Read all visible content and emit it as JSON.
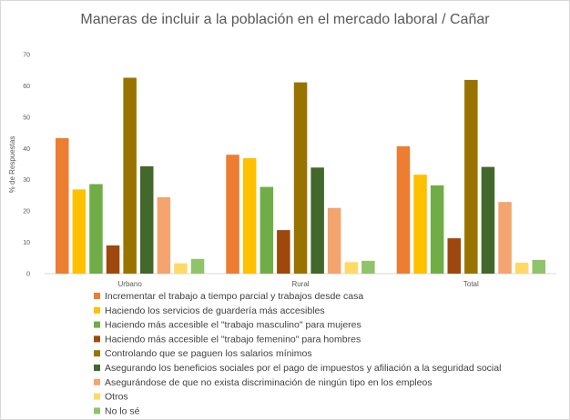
{
  "chart_data": {
    "type": "bar",
    "title": "Maneras de incluir a la población en el mercado laboral / Cañar",
    "ylabel": "% de Respuestas",
    "xlabel": "",
    "ylim": [
      0,
      70
    ],
    "yticks": [
      0,
      10,
      20,
      30,
      40,
      50,
      60,
      70
    ],
    "categories": [
      "Urbano",
      "Rural",
      "Total"
    ],
    "grid": false,
    "legend_position": "bottom",
    "series": [
      {
        "name": "Incrementar el trabajo a tiempo parcial y trabajos desde casa",
        "color": "#ED7D31",
        "values": [
          43.3,
          38.0,
          40.7
        ]
      },
      {
        "name": "Haciendo los servicios de guardería más accesibles",
        "color": "#FFC000",
        "values": [
          26.9,
          36.9,
          31.6
        ]
      },
      {
        "name": "Haciendo más accesible el \"trabajo masculino\" para mujeres",
        "color": "#70AD47",
        "values": [
          28.6,
          27.7,
          28.2
        ]
      },
      {
        "name": "Haciendo más accesible el \"trabajo femenino\" para hombres",
        "color": "#9E480E",
        "values": [
          9.0,
          13.9,
          11.3
        ]
      },
      {
        "name": "Controlando que se paguen los salarios mínimos",
        "color": "#997300",
        "values": [
          62.6,
          61.1,
          61.9
        ]
      },
      {
        "name": "Asegurando los beneficios sociales por el pago de impuestos y afiliación a la seguridad social",
        "color": "#43682B",
        "values": [
          34.3,
          33.9,
          34.1
        ]
      },
      {
        "name": "Asegurándose de que no exista discriminación de ningún tipo en los empleos",
        "color": "#F4A46E",
        "values": [
          24.4,
          21.0,
          22.9
        ]
      },
      {
        "name": "Otros",
        "color": "#FFD966",
        "values": [
          3.3,
          3.7,
          3.5
        ]
      },
      {
        "name": "No lo sé",
        "color": "#8FC46A",
        "values": [
          4.7,
          4.1,
          4.4
        ]
      }
    ]
  }
}
